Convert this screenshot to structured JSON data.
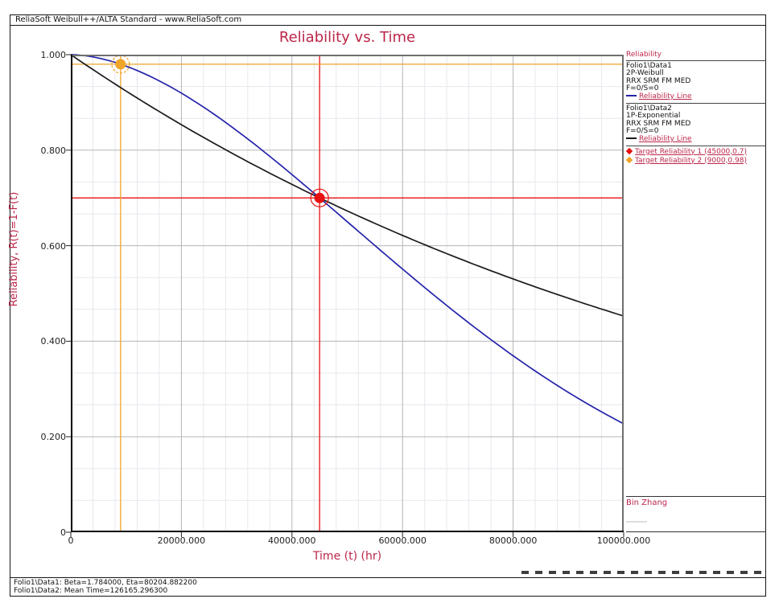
{
  "window": {
    "titlebar": "ReliaSoft Weibull++/ALTA Standard - www.ReliaSoft.com"
  },
  "colors": {
    "accent_text": "#bc2649",
    "weibull_line": "#2323aa",
    "exponential_line": "#1a1a1a",
    "target1": "#e81010",
    "target2": "#f0a428",
    "grid_major": "#b5b5b5",
    "grid_minor": "#e8e8ee"
  },
  "chart_data": {
    "type": "line",
    "title": "Reliability vs. Time",
    "xlabel": "Time (t) (hr)",
    "ylabel": "Reliability, R(t)=1-F(t)",
    "xlim": [
      0,
      100000
    ],
    "ylim": [
      0,
      1
    ],
    "x_ticks": [
      "0",
      "20000.000",
      "40000.000",
      "60000.000",
      "80000.000",
      "100000.000"
    ],
    "y_ticks": [
      "0",
      "0.200",
      "0.400",
      "0.600",
      "0.800",
      "1.000"
    ],
    "grid": {
      "x_major": 20000,
      "x_minor": 4000,
      "y_major": 0.2,
      "y_minor": 0.0666667
    },
    "series": [
      {
        "name": "Folio1\\Data1 Reliability Line",
        "model": "weibull",
        "beta": 1.784,
        "eta": 80204.8822,
        "color": "#2323aa"
      },
      {
        "name": "Folio1\\Data2 Reliability Line",
        "model": "exponential",
        "mean_time": 126165.2963,
        "color": "#1a1a1a"
      }
    ],
    "targets": [
      {
        "name": "Target Reliability 1",
        "t": 45000,
        "r": 0.7,
        "color": "#e81010",
        "ring": "solid"
      },
      {
        "name": "Target Reliability 2",
        "t": 9000,
        "r": 0.98,
        "color": "#f0a428",
        "ring": "dashed"
      }
    ]
  },
  "legend": {
    "header": "Reliability",
    "blocks": [
      {
        "lines": [
          "Folio1\\Data1",
          "2P-Weibull",
          "RRX SRM FM MED",
          "F=0/S=0"
        ],
        "marker_label": "Reliability Line",
        "marker_color": "#2323aa"
      },
      {
        "lines": [
          "Folio1\\Data2",
          "1P-Exponential",
          "RRX SRM FM MED",
          "F=0/S=0"
        ],
        "marker_label": "Reliability Line",
        "marker_color": "#1a1a1a"
      }
    ],
    "targets": [
      {
        "label": "Target Reliability 1 (45000,0.7)",
        "color": "#e81010"
      },
      {
        "label": "Target Reliability 2 (9000,0.98)",
        "color": "#f0a428"
      }
    ],
    "signature": "Bin Zhang"
  },
  "footer": {
    "line1": "Folio1\\Data1: Beta=1.784000, Eta=80204.882200",
    "line2": "Folio1\\Data2: Mean Time=126165.296300"
  }
}
